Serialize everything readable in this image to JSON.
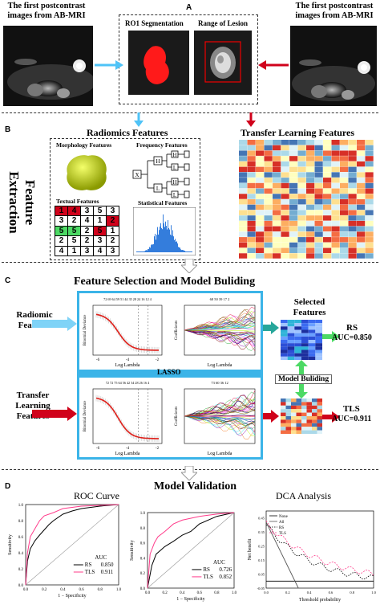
{
  "panelA": {
    "letter": "A",
    "left_title": "The first postcontrast images from AB-MRI",
    "right_title": "The first postcontrast images from AB-MRI",
    "roi_label": "RO1 Segmentation",
    "lesion_label": "Range of Lesion"
  },
  "panelB": {
    "letter": "B",
    "side_label": "Feature Extraction",
    "radiomics_title": "Radiomics Features",
    "morphology": "Morphology Features",
    "frequency": "Frequency Features",
    "textual": "Textual Features",
    "statistical": "Statistical Features",
    "transfer_title": "Transfer Learning Features",
    "textual_grid": [
      [
        "1",
        "4",
        "3",
        "5",
        "3"
      ],
      [
        "3",
        "2",
        "4",
        "1",
        "2"
      ],
      [
        "5",
        "5",
        "2",
        "5",
        "1"
      ],
      [
        "2",
        "5",
        "2",
        "3",
        "2"
      ],
      [
        "4",
        "1",
        "3",
        "4",
        "3"
      ]
    ],
    "freq_nodes": [
      "X",
      "H",
      "L",
      "H",
      "L",
      "H",
      "L"
    ]
  },
  "panelC": {
    "letter": "C",
    "title": "Feature Selection and Model Buliding",
    "radiomic_label": "Radiomic Features",
    "transfer_label": "Transfer Learning Features",
    "lasso": "LASSO",
    "selected_features": "Selected Features",
    "model_building": "Model Buliding",
    "rs": "RS",
    "rs_auc": "AUC=0.850",
    "tls": "TLS",
    "tls_auc": "AUC=0.911",
    "log_lambda": "Log Lambda",
    "binomial_deviance": "Binomial Deviance",
    "coefficients": "Coefficients",
    "top_ticks_1": "72 69 64 59 51 44 35 28 24 16 12 4",
    "top_ticks_2": "68 50 39 17 2",
    "top_ticks_3": "72 72 75 64 56 42 34 28 26 16 4",
    "top_ticks_4": "73 60 36 12"
  },
  "panelD": {
    "letter": "D",
    "title": "Model Validation",
    "roc_title": "ROC Curve",
    "dca_title": "DCA Analysis",
    "sensitivity": "Sensitivity",
    "specificity": "1 − Specificity",
    "auc": "AUC",
    "roc1": [
      {
        "name": "RS",
        "auc": "0.850"
      },
      {
        "name": "TLS",
        "auc": "0.911"
      }
    ],
    "roc2": [
      {
        "name": "RS",
        "auc": "0.726"
      },
      {
        "name": "TLS",
        "auc": "0.852"
      }
    ],
    "net_benefit": "Net benefit",
    "threshold": "Threshold probability",
    "dca_legend": [
      "None",
      "All",
      "RS",
      "TLS"
    ],
    "colors": {
      "rs": "#000000",
      "tls": "#ff3b8a",
      "accent_blue": "#4fc3f7",
      "accent_red": "#d0021b",
      "accent_green": "#4cd964"
    }
  }
}
